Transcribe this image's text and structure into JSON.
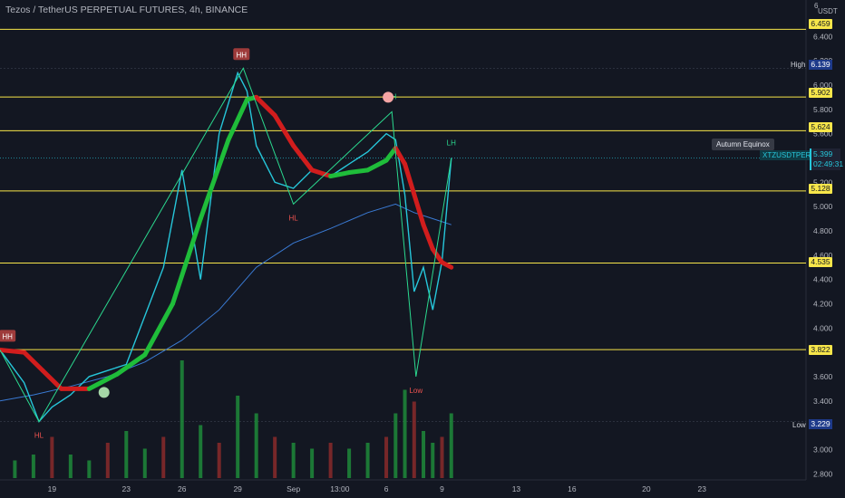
{
  "header": {
    "title": "Tezos / TetherUS PERPETUAL FUTURES, 4h, BINANCE"
  },
  "axis": {
    "currency_index": "6",
    "currency": "USDT"
  },
  "colors": {
    "background": "#131722",
    "up": "#26c6da",
    "down": "#9c6ade",
    "level": "#f7e64a",
    "ma_up": "#1fbd3a",
    "ma_down": "#d11d1d",
    "zigzag": "#2bd98f",
    "ma_slow": "#3a7bd5"
  },
  "levels": [
    {
      "label": "6.459",
      "value": 6.459
    },
    {
      "label": "5.902",
      "value": 5.902
    },
    {
      "label": "5.624",
      "value": 5.624
    },
    {
      "label": "5.128",
      "value": 5.128
    },
    {
      "label": "4.535",
      "value": 4.535
    },
    {
      "label": "3.822",
      "value": 3.822
    }
  ],
  "high": {
    "label": "High",
    "value_label": "6.139",
    "value": 6.139
  },
  "low": {
    "label": "Low",
    "value_label": "3.229",
    "value": 3.229
  },
  "last_price": {
    "symbol": "XTZUSDTPERP",
    "price": "5.399",
    "countdown": "02:49:31",
    "value": 5.399
  },
  "event": {
    "label": "Autumn Equinox"
  },
  "chart_data": {
    "type": "line",
    "title": "Tezos / TetherUS PERPETUAL FUTURES, 4h, BINANCE",
    "y_ticks": [
      "6.400",
      "6.200",
      "6.000",
      "5.800",
      "5.600",
      "5.400",
      "5.200",
      "5.000",
      "4.800",
      "4.600",
      "4.400",
      "4.200",
      "4.000",
      "3.800",
      "3.600",
      "3.400",
      "3.200",
      "3.000",
      "2.800"
    ],
    "y_tick_values": [
      6.4,
      6.2,
      6.0,
      5.8,
      5.6,
      5.4,
      5.2,
      5.0,
      4.8,
      4.6,
      4.4,
      4.2,
      4.0,
      3.8,
      3.6,
      3.4,
      3.2,
      3.0,
      2.8
    ],
    "x_ticks": [
      "19",
      "23",
      "26",
      "29",
      "Sep",
      "13:00",
      "6",
      "9",
      "13",
      "16",
      "20",
      "23"
    ],
    "x_tick_values": [
      19,
      23,
      26,
      29,
      32,
      34.5,
      37,
      40,
      44,
      47,
      51,
      54
    ],
    "ylim": [
      2.75,
      6.7
    ],
    "xlim": [
      16.2,
      59.6
    ],
    "price_path": {
      "x": [
        16.2,
        17.5,
        18.3,
        19,
        20,
        21,
        22,
        23,
        24,
        25,
        26,
        27,
        28,
        29,
        29.5,
        30,
        31,
        32,
        33,
        34,
        35,
        36,
        37,
        37.5,
        38,
        38.5,
        39,
        39.5,
        40,
        40.5
      ],
      "y": [
        3.82,
        3.55,
        3.23,
        3.35,
        3.45,
        3.6,
        3.65,
        3.7,
        4.1,
        4.5,
        5.3,
        4.4,
        5.6,
        6.1,
        5.95,
        5.5,
        5.2,
        5.15,
        5.3,
        5.25,
        5.35,
        5.45,
        5.6,
        5.55,
        5.1,
        4.3,
        4.5,
        4.15,
        4.55,
        5.4
      ]
    },
    "zigzag": {
      "x": [
        16.2,
        18.3,
        29.3,
        32,
        37.3,
        38.6,
        40.5
      ],
      "y": [
        3.82,
        3.23,
        6.139,
        5.02,
        5.78,
        3.6,
        5.399
      ]
    },
    "ma_fast": {
      "x": [
        16.2,
        17.5,
        18.5,
        19.5,
        21,
        22.5,
        24,
        25.5,
        27,
        28.5,
        29.5,
        30,
        31,
        32,
        33,
        34,
        35,
        36,
        37,
        37.5,
        38,
        38.5,
        39,
        39.5,
        40,
        40.5
      ],
      "y": [
        3.82,
        3.8,
        3.65,
        3.5,
        3.5,
        3.62,
        3.78,
        4.2,
        4.9,
        5.55,
        5.88,
        5.9,
        5.75,
        5.5,
        5.3,
        5.25,
        5.28,
        5.3,
        5.38,
        5.48,
        5.35,
        5.1,
        4.85,
        4.65,
        4.54,
        4.5
      ],
      "trend": [
        "down",
        "down",
        "down",
        "down",
        "up",
        "up",
        "up",
        "up",
        "up",
        "up",
        "up",
        "down",
        "down",
        "down",
        "down",
        "up",
        "up",
        "up",
        "up",
        "down",
        "down",
        "down",
        "down",
        "down",
        "down",
        "down"
      ]
    },
    "ma_slow": {
      "x": [
        16.2,
        18,
        20,
        22,
        24,
        26,
        28,
        30,
        32,
        34,
        36,
        37.5,
        38.5,
        39.5,
        40.5
      ],
      "y": [
        3.4,
        3.45,
        3.52,
        3.6,
        3.72,
        3.9,
        4.15,
        4.5,
        4.7,
        4.82,
        4.95,
        5.02,
        4.95,
        4.9,
        4.85
      ]
    },
    "annotations": [
      {
        "text": "HH",
        "x": 29.2,
        "y": 6.139,
        "kind": "hh"
      },
      {
        "text": "HH",
        "x": 16.6,
        "y": 3.82,
        "kind": "hh"
      },
      {
        "text": "HL",
        "x": 18.3,
        "y": 3.23,
        "kind": "hl"
      },
      {
        "text": "HL",
        "x": 32,
        "y": 5.02,
        "kind": "hl"
      },
      {
        "text": "LH",
        "x": 37.3,
        "y": 5.78,
        "kind": "lh"
      },
      {
        "text": "LH",
        "x": 40.5,
        "y": 5.399,
        "kind": "lh"
      },
      {
        "text": "Low",
        "x": 38.6,
        "y": 3.6,
        "kind": "low"
      }
    ],
    "volume": {
      "x": [
        17,
        18,
        19,
        20,
        21,
        22,
        23,
        24,
        25,
        26,
        27,
        28,
        29,
        30,
        31,
        32,
        33,
        34,
        35,
        36,
        37,
        37.5,
        38,
        38.5,
        39,
        39.5,
        40,
        40.5
      ],
      "v": [
        0.15,
        0.2,
        0.35,
        0.2,
        0.15,
        0.3,
        0.4,
        0.25,
        0.35,
        1.0,
        0.45,
        0.3,
        0.7,
        0.55,
        0.35,
        0.3,
        0.25,
        0.3,
        0.25,
        0.3,
        0.35,
        0.55,
        0.75,
        0.65,
        0.4,
        0.3,
        0.35,
        0.55
      ]
    }
  }
}
